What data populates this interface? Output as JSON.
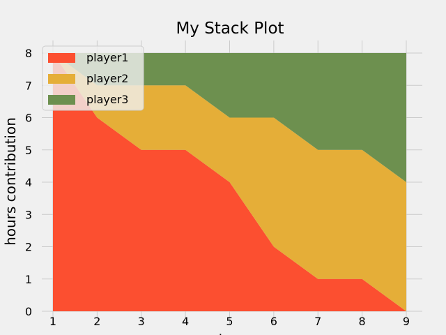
{
  "chart_data": {
    "type": "area",
    "stacked": true,
    "title": "My Stack Plot",
    "xlabel": "days",
    "ylabel": "hours contribution",
    "x": [
      1,
      2,
      3,
      4,
      5,
      6,
      7,
      8,
      9
    ],
    "xlim": [
      1,
      9
    ],
    "ylim": [
      0,
      8
    ],
    "xticks": [
      1,
      2,
      3,
      4,
      5,
      6,
      7,
      8,
      9
    ],
    "yticks": [
      0,
      1,
      2,
      3,
      4,
      5,
      6,
      7,
      8
    ],
    "grid": true,
    "legend": "top-left",
    "series": [
      {
        "name": "player1",
        "color": "#fc4f30",
        "values": [
          8,
          6,
          5,
          5,
          4,
          2,
          1,
          1,
          0
        ]
      },
      {
        "name": "player2",
        "color": "#e5ae38",
        "values": [
          0,
          1,
          2,
          2,
          2,
          4,
          4,
          4,
          4
        ]
      },
      {
        "name": "player3",
        "color": "#6d904f",
        "values": [
          0,
          1,
          1,
          1,
          2,
          2,
          3,
          3,
          4
        ]
      }
    ]
  }
}
